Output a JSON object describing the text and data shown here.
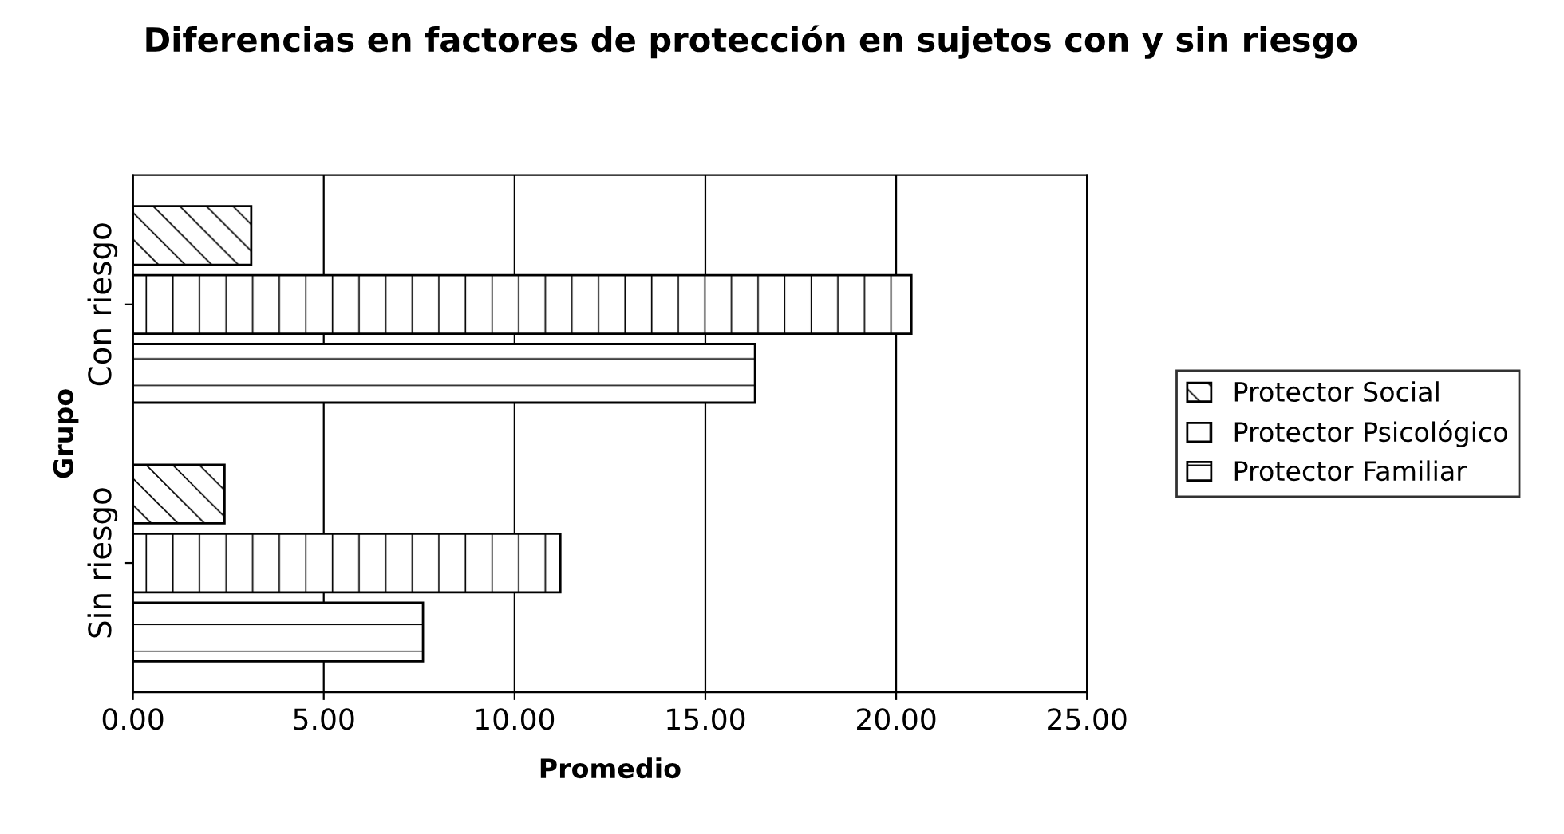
{
  "chart_data": {
    "type": "bar",
    "orientation": "horizontal",
    "title": "Diferencias en factores de protección en sujetos con y sin riesgo",
    "xlabel": "Promedio",
    "ylabel": "Grupo",
    "categories": [
      "Con riesgo",
      "Sin riesgo"
    ],
    "series": [
      {
        "name": "Protector Social",
        "color": "#000000",
        "values": [
          3.1,
          2.4
        ]
      },
      {
        "name": "Protector Psicológico",
        "color": "#000000",
        "values": [
          20.4,
          11.2
        ]
      },
      {
        "name": "Protector Familiar",
        "color": "#000000",
        "values": [
          16.3,
          7.6
        ]
      }
    ],
    "xlim": [
      0,
      25
    ],
    "xticks": [
      {
        "value": 0,
        "label": "0.00"
      },
      {
        "value": 5,
        "label": "5.00"
      },
      {
        "value": 10,
        "label": "10.00"
      },
      {
        "value": 15,
        "label": "15.00"
      },
      {
        "value": 20,
        "label": "20.00"
      },
      {
        "value": 25,
        "label": "25.00"
      }
    ],
    "grid": "x",
    "legend": "right"
  }
}
